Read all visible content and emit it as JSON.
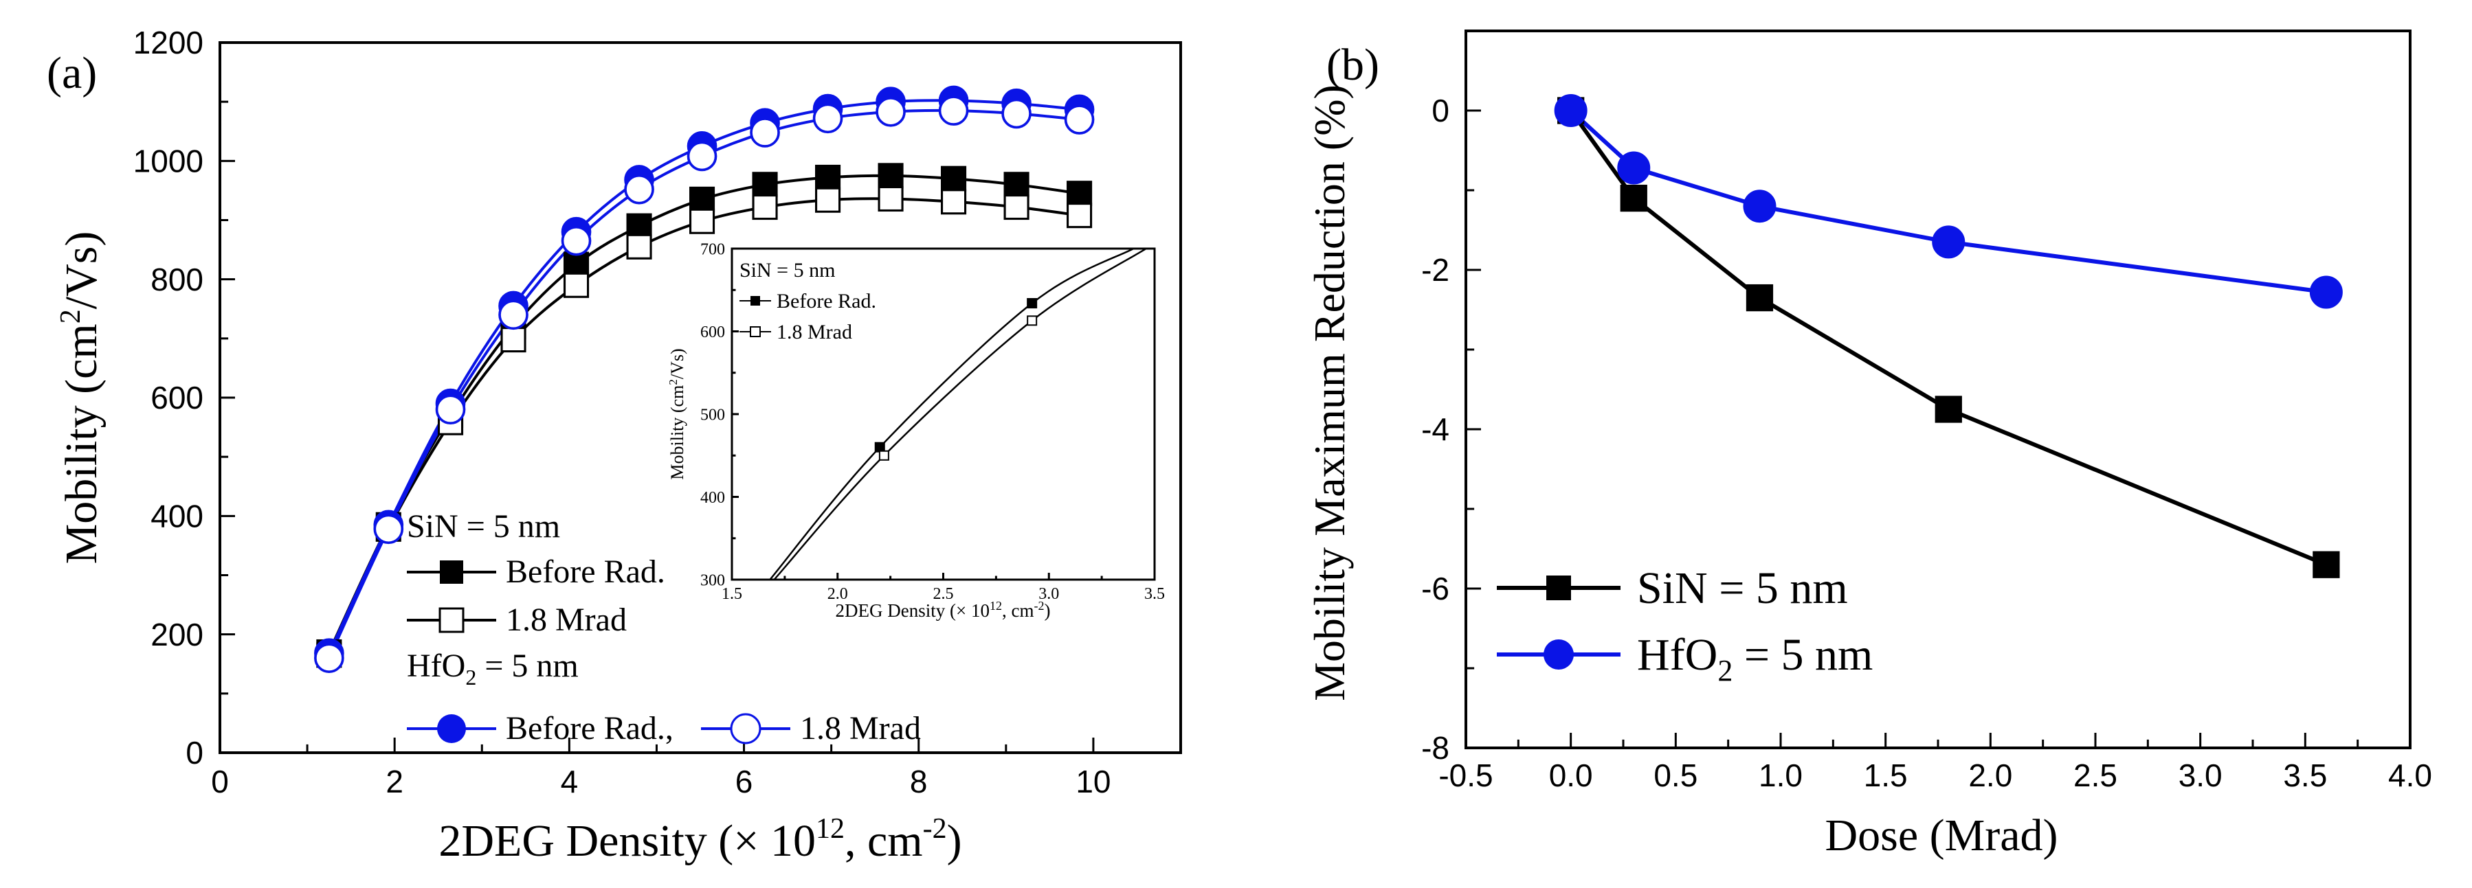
{
  "colors": {
    "black_series": "#000000",
    "blue_series": "#0a14e6",
    "axis": "#000000"
  },
  "chart_data": [
    {
      "id": "a",
      "panel_label": "(a)",
      "type": "line",
      "title": "",
      "xlabel": "2DEG Density (× 10",
      "xlabel_sup": "12",
      "xlabel_tail": ", cm",
      "xlabel_sup2": "-2",
      "xlabel_end": ")",
      "ylabel": "Mobility (cm",
      "ylabel_sup": "2",
      "ylabel_tail": "/Vs)",
      "xlim": [
        0,
        11
      ],
      "ylim": [
        0,
        1200
      ],
      "xticks": [
        "0",
        "2",
        "4",
        "6",
        "8",
        "10"
      ],
      "yticks": [
        "0",
        "200",
        "400",
        "600",
        "800",
        "1000",
        "1200"
      ],
      "x": [
        1.25,
        1.93,
        2.64,
        3.36,
        4.08,
        4.8,
        5.52,
        6.24,
        6.96,
        7.68,
        8.4,
        9.12,
        9.84
      ],
      "series": [
        {
          "name": "SiN Before Rad.",
          "group": "SiN",
          "color": "black",
          "marker": "square-filled",
          "values": [
            170,
            385,
            570,
            720,
            825,
            890,
            935,
            960,
            972,
            975,
            970,
            960,
            945
          ]
        },
        {
          "name": "SiN 1.8 Mrad",
          "group": "SiN",
          "color": "black",
          "marker": "square-open",
          "values": [
            165,
            378,
            558,
            698,
            790,
            855,
            898,
            922,
            934,
            936,
            931,
            922,
            908
          ]
        },
        {
          "name": "HfO2 Before Rad.",
          "group": "HfO2",
          "color": "blue",
          "marker": "circle-filled",
          "values": [
            168,
            385,
            590,
            755,
            880,
            968,
            1025,
            1064,
            1088,
            1100,
            1102,
            1097,
            1087
          ]
        },
        {
          "name": "HfO2 1.8 Mrad",
          "group": "HfO2",
          "color": "blue",
          "marker": "circle-open",
          "values": [
            160,
            378,
            580,
            740,
            865,
            952,
            1008,
            1048,
            1072,
            1083,
            1085,
            1080,
            1070
          ]
        }
      ],
      "legend": {
        "sin_title": "SiN = 5 nm",
        "sin_before": "Before Rad.",
        "sin_after": "1.8 Mrad",
        "hfo_title_pre": "HfO",
        "hfo_title_sub": "2",
        "hfo_title_post": " = 5 nm",
        "hfo_before": "Before Rad.,",
        "hfo_after": "1.8 Mrad"
      },
      "inset": {
        "type": "line",
        "xlabel": "2DEG Density (× 10",
        "xlabel_sup": "12",
        "xlabel_tail": ", cm",
        "xlabel_sup2": "-2",
        "xlabel_end": ")",
        "ylabel": "Mobility (cm",
        "ylabel_sup": "2",
        "ylabel_tail": "/Vs)",
        "xlim": [
          1.5,
          3.5
        ],
        "ylim": [
          300,
          700
        ],
        "xticks": [
          "1.5",
          "2.0",
          "2.5",
          "3.0",
          "3.5"
        ],
        "yticks": [
          "300",
          "400",
          "500",
          "600",
          "700"
        ],
        "legend_title": "SiN = 5 nm",
        "legend_before": "Before Rad.",
        "legend_after": "1.8 Mrad",
        "series": [
          {
            "name": "Before Rad.",
            "marker": "square-filled",
            "x": [
              1.68,
              2.2,
              2.92,
              3.4
            ],
            "values": [
              300,
              460,
              634,
              700
            ],
            "marker_x": [
              2.2,
              2.92
            ],
            "marker_values": [
              460,
              634
            ]
          },
          {
            "name": "1.8 Mrad",
            "marker": "square-open",
            "x": [
              1.7,
              2.22,
              2.92,
              3.46
            ],
            "values": [
              300,
              450,
              613,
              700
            ],
            "marker_x": [
              2.22,
              2.92
            ],
            "marker_values": [
              450,
              613
            ]
          }
        ]
      }
    },
    {
      "id": "b",
      "panel_label": "(b)",
      "type": "line",
      "title": "",
      "xlabel": "Dose (Mrad)",
      "ylabel": "Mobility Maximum Reduction (%)",
      "xlim": [
        -0.5,
        4.0
      ],
      "ylim": [
        -8,
        1
      ],
      "xticks": [
        "-0.5",
        "0.0",
        "0.5",
        "1.0",
        "1.5",
        "2.0",
        "2.5",
        "3.0",
        "3.5",
        "4.0"
      ],
      "yticks": [
        "-8",
        "-6",
        "-4",
        "-2",
        "0"
      ],
      "series": [
        {
          "name": "SiN = 5 nm",
          "color": "black",
          "marker": "square-filled",
          "x": [
            0,
            0.3,
            0.9,
            1.8,
            3.6
          ],
          "values": [
            0,
            -1.1,
            -2.35,
            -3.75,
            -5.7
          ]
        },
        {
          "name": "HfO2 = 5 nm",
          "color": "blue",
          "marker": "circle-filled",
          "x": [
            0,
            0.3,
            0.9,
            1.8,
            3.6
          ],
          "values": [
            0,
            -0.72,
            -1.2,
            -1.65,
            -2.28
          ]
        }
      ],
      "legend": {
        "sin": "SiN = 5 nm",
        "hfo_pre": "HfO",
        "hfo_sub": "2",
        "hfo_post": " = 5 nm"
      }
    }
  ]
}
